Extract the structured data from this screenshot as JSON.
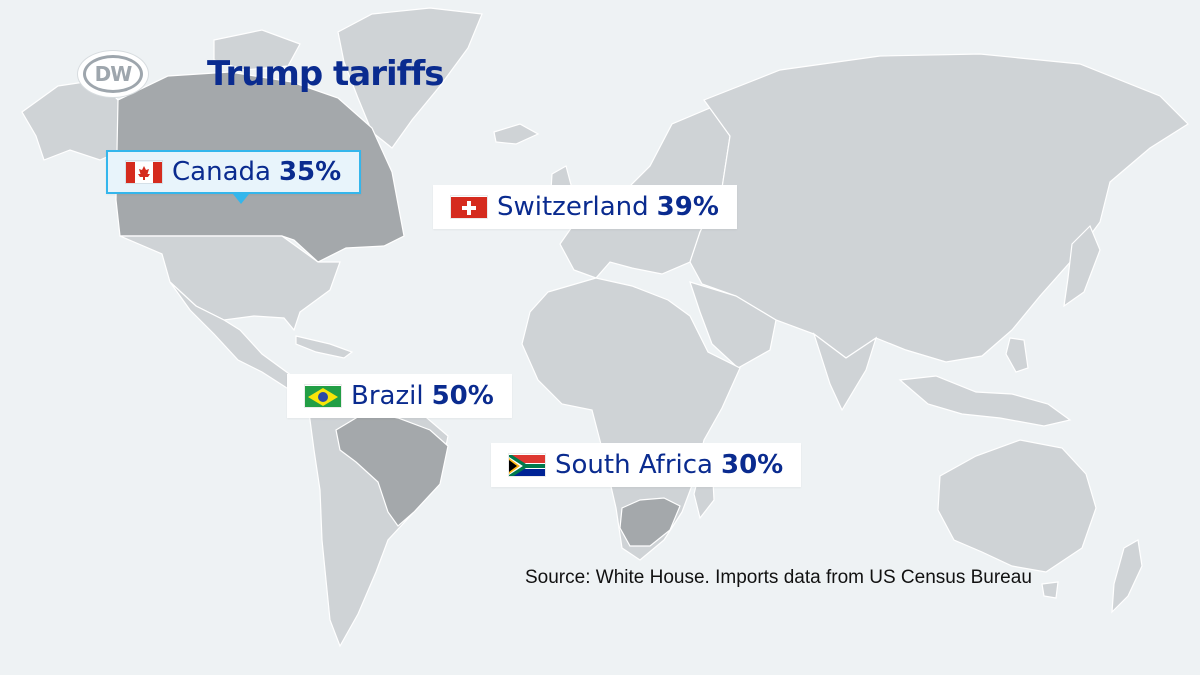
{
  "header": {
    "logo_text": "DW",
    "title": "Trump tariffs"
  },
  "map": {
    "countries": [
      {
        "name": "Canada",
        "value": "35%",
        "flag": "flag-canada-icon",
        "highlighted": true
      },
      {
        "name": "Switzerland",
        "value": "39%",
        "flag": "flag-switzerland-icon",
        "highlighted": false
      },
      {
        "name": "Brazil",
        "value": "50%",
        "flag": "flag-brazil-icon",
        "highlighted": false
      },
      {
        "name": "South Africa",
        "value": "30%",
        "flag": "flag-south-africa-icon",
        "highlighted": false
      }
    ],
    "colors": {
      "ocean": "#eef2f4",
      "land": "#cfd3d6",
      "highlighted_land": "#a4a8ab",
      "title": "#0a2b8f",
      "accent": "#34b6ec"
    }
  },
  "footer": {
    "source": "Source: White House. Imports data from US Census Bureau"
  }
}
